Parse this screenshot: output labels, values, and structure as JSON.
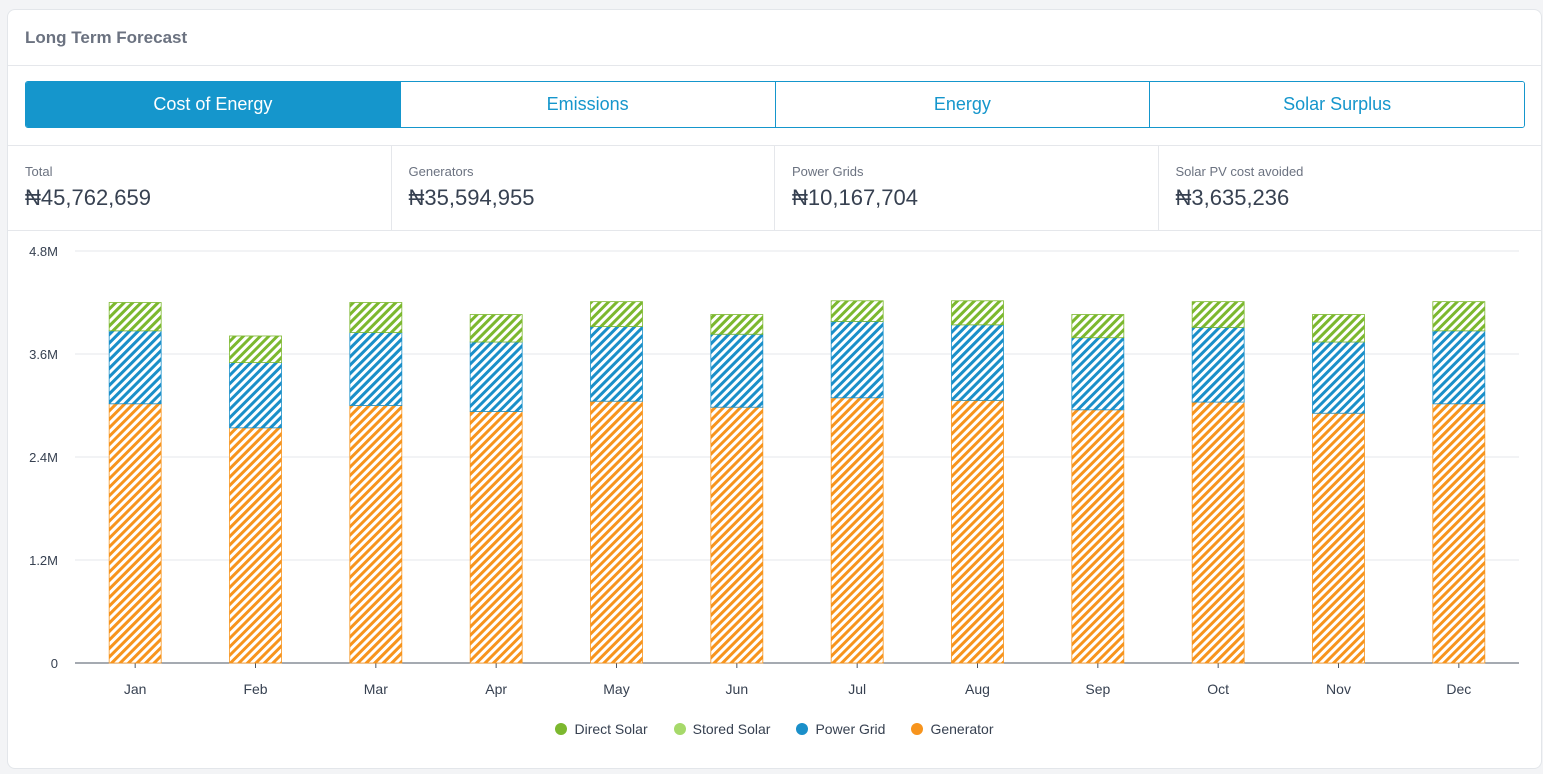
{
  "header": {
    "title": "Long Term Forecast"
  },
  "tabs": [
    {
      "label": "Cost of Energy",
      "active": true
    },
    {
      "label": "Emissions",
      "active": false
    },
    {
      "label": "Energy",
      "active": false
    },
    {
      "label": "Solar Surplus",
      "active": false
    }
  ],
  "stats": [
    {
      "label": "Total",
      "value": "₦45,762,659"
    },
    {
      "label": "Generators",
      "value": "₦35,594,955"
    },
    {
      "label": "Power Grids",
      "value": "₦10,167,704"
    },
    {
      "label": "Solar PV cost avoided",
      "value": "₦3,635,236"
    }
  ],
  "chart_data": {
    "type": "bar",
    "stacked": true,
    "categories": [
      "Jan",
      "Feb",
      "Mar",
      "Apr",
      "May",
      "Jun",
      "Jul",
      "Aug",
      "Sep",
      "Oct",
      "Nov",
      "Dec"
    ],
    "ylim": [
      0,
      4800000
    ],
    "yticks": [
      {
        "value": 0,
        "label": "0"
      },
      {
        "value": 1200000,
        "label": "1.2M"
      },
      {
        "value": 2400000,
        "label": "2.4M"
      },
      {
        "value": 3600000,
        "label": "3.6M"
      },
      {
        "value": 4800000,
        "label": "4.8M"
      }
    ],
    "grid": true,
    "legend_position": "bottom",
    "series": [
      {
        "name": "Generator",
        "color": "#f7941d",
        "values": [
          3020000,
          2740000,
          3000000,
          2930000,
          3050000,
          2980000,
          3090000,
          3060000,
          2950000,
          3040000,
          2910000,
          3020000
        ]
      },
      {
        "name": "Power Grid",
        "color": "#1a8fc9",
        "values": [
          850000,
          760000,
          850000,
          810000,
          870000,
          850000,
          890000,
          880000,
          840000,
          870000,
          830000,
          850000
        ]
      },
      {
        "name": "Stored Solar",
        "color": "#a6d96a",
        "values": [
          0,
          0,
          0,
          0,
          0,
          0,
          0,
          0,
          0,
          0,
          0,
          0
        ]
      },
      {
        "name": "Direct Solar",
        "color": "#7cb82f",
        "values": [
          330000,
          310000,
          350000,
          320000,
          290000,
          230000,
          240000,
          280000,
          270000,
          300000,
          320000,
          340000
        ]
      }
    ],
    "legend": [
      {
        "name": "Direct Solar",
        "color": "#7cb82f"
      },
      {
        "name": "Stored Solar",
        "color": "#a6d96a"
      },
      {
        "name": "Power Grid",
        "color": "#1a8fc9"
      },
      {
        "name": "Generator",
        "color": "#f7941d"
      }
    ]
  }
}
